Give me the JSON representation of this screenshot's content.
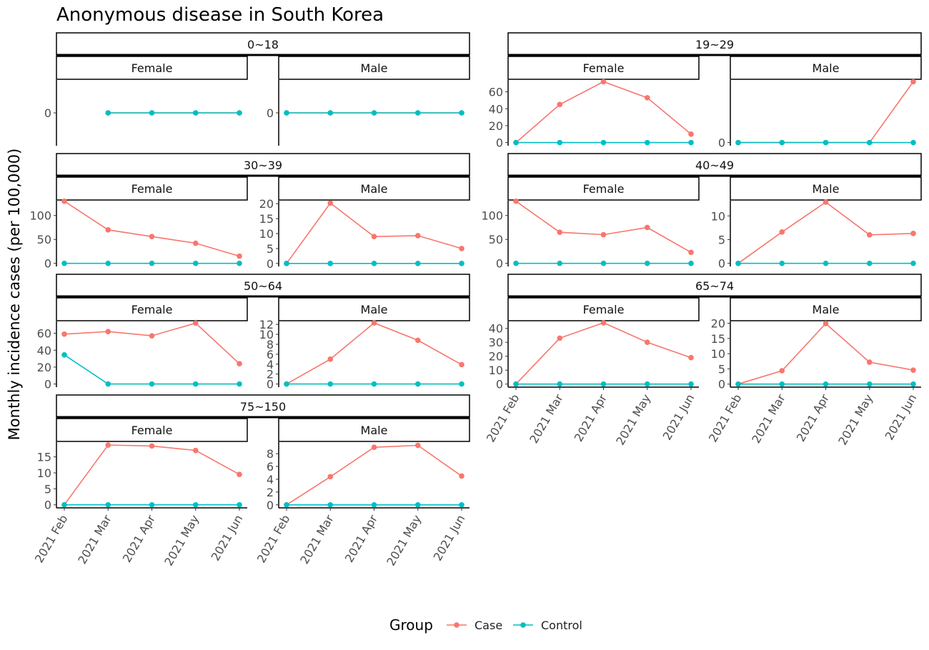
{
  "chart_data": {
    "type": "line",
    "title": "Anonymous disease in South Korea",
    "ylabel": "Monthly incidence cases (per 100,000)",
    "xlabel": "",
    "x_categories": [
      "2021 Feb",
      "2021 Mar",
      "2021 Apr",
      "2021 May",
      "2021 Jun"
    ],
    "legend": {
      "title": "Group",
      "position": "bottom",
      "entries": [
        {
          "name": "Case",
          "color": "#F8766D"
        },
        {
          "name": "Control",
          "color": "#00BFC4"
        }
      ]
    },
    "grid": false,
    "facets": [
      {
        "age_group": "0~18",
        "panels": [
          {
            "sex": "Female",
            "yticks": [
              0
            ],
            "ylim": [
              -1,
              1
            ],
            "series": [
              {
                "name": "Case",
                "values": [
                  null,
                  0,
                  0,
                  0,
                  0
                ]
              },
              {
                "name": "Control",
                "values": [
                  null,
                  0,
                  0,
                  0,
                  0
                ]
              }
            ]
          },
          {
            "sex": "Male",
            "yticks": [
              0
            ],
            "ylim": [
              -1,
              1
            ],
            "series": [
              {
                "name": "Case",
                "values": [
                  0,
                  0,
                  0,
                  0,
                  0
                ]
              },
              {
                "name": "Control",
                "values": [
                  0,
                  0,
                  0,
                  0,
                  0
                ]
              }
            ]
          }
        ]
      },
      {
        "age_group": "19~29",
        "panels": [
          {
            "sex": "Female",
            "yticks": [
              0,
              20,
              40,
              60
            ],
            "ylim": [
              -3.7,
              74
            ],
            "series": [
              {
                "name": "Case",
                "values": [
                  0,
                  45,
                  72,
                  53,
                  10
                ]
              },
              {
                "name": "Control",
                "values": [
                  0,
                  0,
                  0,
                  0,
                  0
                ]
              }
            ]
          },
          {
            "sex": "Male",
            "yticks": [
              0
            ],
            "ylim": [
              -3.7,
              74
            ],
            "series": [
              {
                "name": "Case",
                "values": [
                  0,
                  0,
                  0,
                  0,
                  72
                ]
              },
              {
                "name": "Control",
                "values": [
                  0,
                  0,
                  0,
                  0,
                  0
                ]
              }
            ]
          }
        ]
      },
      {
        "age_group": "30~39",
        "panels": [
          {
            "sex": "Female",
            "yticks": [
              0,
              50,
              100
            ],
            "ylim": [
              -6.5,
              131
            ],
            "series": [
              {
                "name": "Case",
                "values": [
                  130,
                  70,
                  56,
                  42,
                  15
                ]
              },
              {
                "name": "Control",
                "values": [
                  0,
                  0,
                  0,
                  0,
                  0
                ]
              }
            ]
          },
          {
            "sex": "Male",
            "yticks": [
              0,
              5,
              10,
              15,
              20
            ],
            "ylim": [
              -1.0,
              21
            ],
            "series": [
              {
                "name": "Case",
                "values": [
                  0,
                  20.2,
                  9,
                  9.3,
                  5
                ]
              },
              {
                "name": "Control",
                "values": [
                  0,
                  0,
                  0,
                  0,
                  0
                ]
              }
            ]
          }
        ]
      },
      {
        "age_group": "40~49",
        "panels": [
          {
            "sex": "Female",
            "yticks": [
              0,
              50,
              100
            ],
            "ylim": [
              -6.5,
              131
            ],
            "series": [
              {
                "name": "Case",
                "values": [
                  130,
                  65,
                  60,
                  75,
                  23
                ]
              },
              {
                "name": "Control",
                "values": [
                  0,
                  0,
                  0,
                  0,
                  0
                ]
              }
            ]
          },
          {
            "sex": "Male",
            "yticks": [
              0,
              5,
              10
            ],
            "ylim": [
              -0.65,
              13.2
            ],
            "series": [
              {
                "name": "Case",
                "values": [
                  0,
                  6.6,
                  12.9,
                  6,
                  6.3
                ]
              },
              {
                "name": "Control",
                "values": [
                  0,
                  0,
                  0,
                  0,
                  0
                ]
              }
            ]
          }
        ]
      },
      {
        "age_group": "50~64",
        "panels": [
          {
            "sex": "Female",
            "yticks": [
              0,
              20,
              40,
              60
            ],
            "ylim": [
              -3.7,
              74
            ],
            "series": [
              {
                "name": "Case",
                "values": [
                  59,
                  62,
                  57,
                  72,
                  24
                ]
              },
              {
                "name": "Control",
                "values": [
                  34.5,
                  0,
                  0,
                  0,
                  0
                ]
              }
            ]
          },
          {
            "sex": "Male",
            "yticks": [
              0,
              2,
              4,
              6,
              8,
              10,
              12
            ],
            "ylim": [
              -0.63,
              12.6
            ],
            "series": [
              {
                "name": "Case",
                "values": [
                  0,
                  5,
                  12.3,
                  8.8,
                  3.9
                ]
              },
              {
                "name": "Control",
                "values": [
                  0,
                  0,
                  0,
                  0,
                  0
                ]
              }
            ]
          }
        ]
      },
      {
        "age_group": "65~74",
        "panels": [
          {
            "sex": "Female",
            "yticks": [
              0,
              10,
              20,
              30,
              40
            ],
            "ylim": [
              -2.2,
              45
            ],
            "series": [
              {
                "name": "Case",
                "values": [
                  0,
                  33,
                  44,
                  30,
                  19
                ]
              },
              {
                "name": "Control",
                "values": [
                  0,
                  0,
                  0,
                  0,
                  0
                ]
              }
            ]
          },
          {
            "sex": "Male",
            "yticks": [
              0,
              5,
              10,
              15,
              20
            ],
            "ylim": [
              -1.0,
              20.6
            ],
            "series": [
              {
                "name": "Case",
                "values": [
                  0,
                  4.4,
                  19.9,
                  7.2,
                  4.6
                ]
              },
              {
                "name": "Control",
                "values": [
                  0,
                  0,
                  0,
                  0,
                  0
                ]
              }
            ]
          }
        ]
      },
      {
        "age_group": "75~150",
        "panels": [
          {
            "sex": "Female",
            "yticks": [
              0,
              5,
              10,
              15
            ],
            "ylim": [
              -0.95,
              19.6
            ],
            "series": [
              {
                "name": "Case",
                "values": [
                  0,
                  18.7,
                  18.4,
                  17,
                  9.5
                ]
              },
              {
                "name": "Control",
                "values": [
                  0,
                  0,
                  0,
                  0,
                  0
                ]
              }
            ]
          },
          {
            "sex": "Male",
            "yticks": [
              0,
              2,
              4,
              6,
              8
            ],
            "ylim": [
              -0.47,
              9.8
            ],
            "series": [
              {
                "name": "Case",
                "values": [
                  0,
                  4.4,
                  9,
                  9.3,
                  4.5
                ]
              },
              {
                "name": "Control",
                "values": [
                  0,
                  0,
                  0,
                  0,
                  0
                ]
              }
            ]
          }
        ]
      }
    ]
  }
}
